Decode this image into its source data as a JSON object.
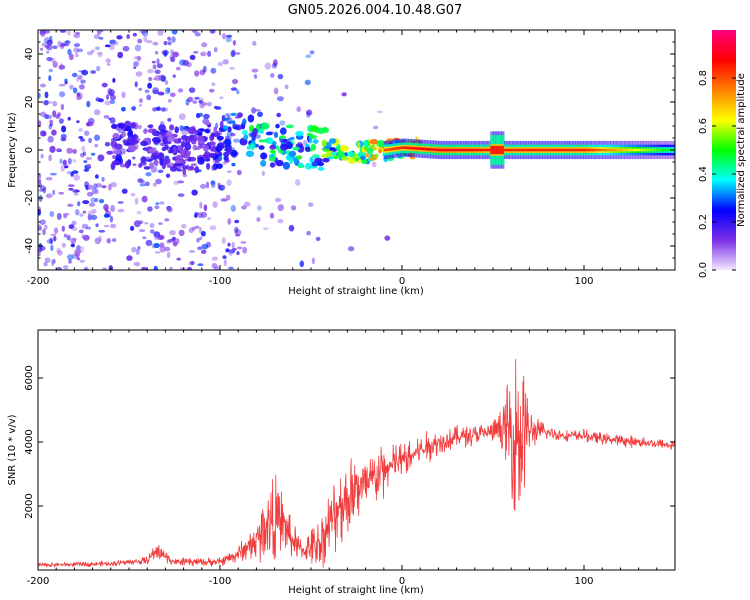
{
  "title": "GN05.2026.004.10.48.G07",
  "chart_data": [
    {
      "type": "heatmap",
      "xlabel": "Height of straight line (km)",
      "ylabel": "Frequency (Hz)",
      "xlim": [
        -200,
        150
      ],
      "ylim": [
        -50,
        50
      ],
      "xticks": [
        -200,
        -100,
        0,
        100
      ],
      "yticks": [
        -40,
        -20,
        0,
        20,
        40
      ],
      "colorbar": {
        "label": "Normalized spectral amplitude",
        "range": [
          0,
          1
        ],
        "ticks": [
          0.0,
          0.2,
          0.4,
          0.6,
          0.8
        ],
        "colors": [
          "#f2e6ff",
          "#7a2ee6",
          "#0000ff",
          "#00ffff",
          "#00ff00",
          "#ffff00",
          "#ff8000",
          "#ff0000",
          "#ff0080"
        ]
      },
      "ridge": {
        "x": [
          -150,
          -120,
          -100,
          -90,
          -80,
          -60,
          -40,
          -20,
          0,
          20,
          50,
          100,
          150
        ],
        "freq_hz": [
          2,
          0,
          2,
          8,
          3,
          2,
          0,
          -1,
          1,
          0,
          0,
          0,
          0
        ],
        "amplitude": [
          0.25,
          0.2,
          0.3,
          0.45,
          0.5,
          0.5,
          0.6,
          0.75,
          0.85,
          0.9,
          0.85,
          0.85,
          0.45
        ]
      }
    },
    {
      "type": "line",
      "xlabel": "Height of straight line (km)",
      "ylabel": "SNR (10 * v/v)",
      "xlim": [
        -200,
        150
      ],
      "ylim": [
        0,
        7500
      ],
      "xticks": [
        -200,
        -100,
        0,
        100
      ],
      "yticks": [
        2000,
        4000,
        6000
      ],
      "color": "#f03c3c",
      "envelope": {
        "x": [
          -200,
          -160,
          -140,
          -135,
          -125,
          -100,
          -90,
          -80,
          -75,
          -70,
          -65,
          -60,
          -55,
          -50,
          -45,
          -40,
          -35,
          -30,
          -25,
          -20,
          -15,
          -10,
          -5,
          0,
          10,
          20,
          30,
          40,
          50,
          55,
          60,
          62,
          64,
          66,
          68,
          70,
          75,
          80,
          90,
          100,
          110,
          130,
          150
        ],
        "mean": [
          150,
          200,
          300,
          600,
          250,
          250,
          500,
          900,
          1500,
          1600,
          1400,
          900,
          600,
          700,
          900,
          1400,
          1900,
          2300,
          2600,
          2600,
          2900,
          3100,
          3300,
          3400,
          3750,
          4000,
          4150,
          4250,
          4300,
          4400,
          4450,
          4300,
          4200,
          4200,
          4300,
          4350,
          4350,
          4300,
          4200,
          4200,
          4100,
          4000,
          3900
        ],
        "spread": [
          60,
          60,
          100,
          250,
          100,
          120,
          250,
          500,
          900,
          1100,
          900,
          500,
          300,
          500,
          700,
          900,
          1100,
          1200,
          1000,
          900,
          800,
          700,
          600,
          500,
          400,
          350,
          300,
          250,
          300,
          600,
          1500,
          2500,
          3000,
          2500,
          1500,
          600,
          300,
          200,
          150,
          150,
          150,
          150,
          150
        ]
      }
    }
  ]
}
